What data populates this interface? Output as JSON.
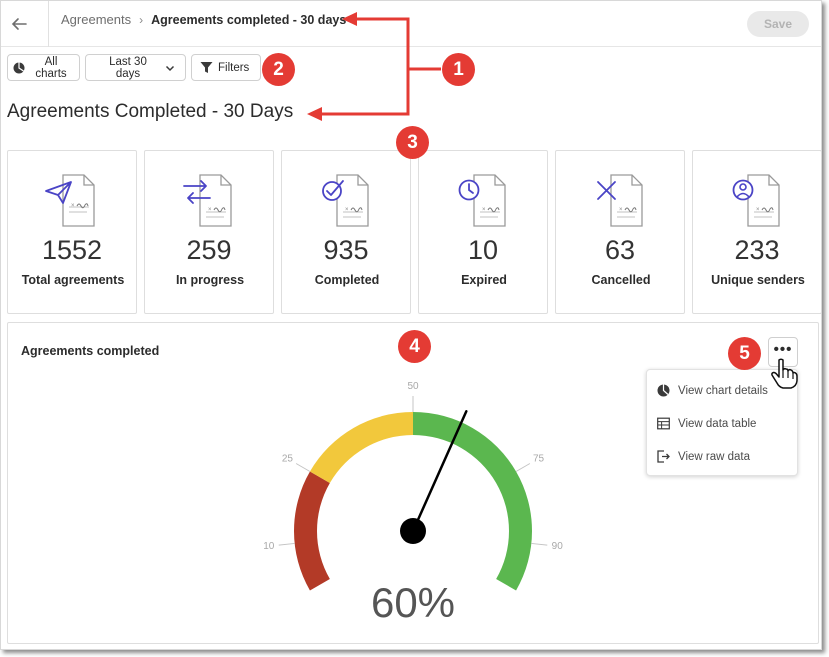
{
  "breadcrumb": {
    "parent": "Agreements",
    "separator": "›",
    "current": "Agreements completed - 30 days"
  },
  "save_label": "Save",
  "toolbar": {
    "all_charts": "All charts",
    "date_range": "Last 30 days",
    "filters": "Filters"
  },
  "page_title": "Agreements Completed - 30 Days",
  "cards": [
    {
      "value": "1552",
      "label": "Total agreements",
      "icon": "send-document-icon"
    },
    {
      "value": "259",
      "label": "In progress",
      "icon": "arrows-document-icon"
    },
    {
      "value": "935",
      "label": "Completed",
      "icon": "check-document-icon"
    },
    {
      "value": "10",
      "label": "Expired",
      "icon": "clock-document-icon"
    },
    {
      "value": "63",
      "label": "Cancelled",
      "icon": "x-document-icon"
    },
    {
      "value": "233",
      "label": "Unique senders",
      "icon": "user-document-icon"
    }
  ],
  "panel": {
    "title": "Agreements completed",
    "more_label": "•••"
  },
  "menu": [
    {
      "label": "View chart details",
      "icon": "pie-chart-icon"
    },
    {
      "label": "View data table",
      "icon": "table-icon"
    },
    {
      "label": "View raw data",
      "icon": "export-icon"
    }
  ],
  "badges": [
    "1",
    "2",
    "3",
    "4",
    "5"
  ],
  "colors": {
    "red": "#b33a27",
    "yellow": "#f2c83c",
    "green": "#5bb74f",
    "accent": "#4a44c6",
    "annotation": "#e43b34"
  },
  "chart_data": {
    "type": "gauge",
    "value": 60,
    "value_label": "60%",
    "range": [
      0,
      100
    ],
    "ticks": [
      10,
      25,
      50,
      75,
      90
    ],
    "bands": [
      {
        "from": 0,
        "to": 25,
        "color": "#b33a27"
      },
      {
        "from": 25,
        "to": 50,
        "color": "#f2c83c"
      },
      {
        "from": 50,
        "to": 100,
        "color": "#5bb74f"
      }
    ]
  }
}
